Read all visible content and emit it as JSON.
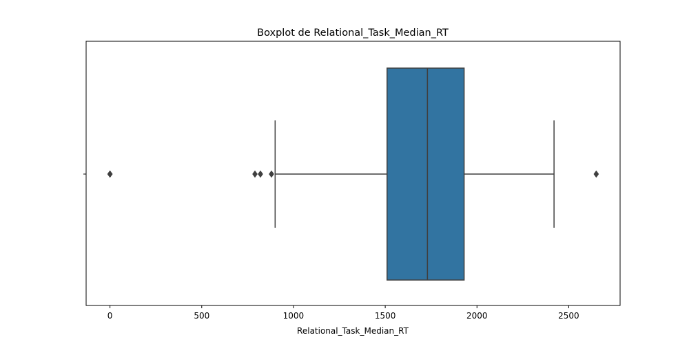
{
  "chart_data": {
    "type": "boxplot",
    "title": "Boxplot de Relational_Task_Median_RT",
    "xlabel": "Relational_Task_Median_RT",
    "ylabel": "",
    "xlim": [
      -130,
      2780
    ],
    "xticks": [
      0,
      500,
      1000,
      1500,
      2000,
      2500
    ],
    "grid": false,
    "box_color": "#3274a1",
    "line_color": "#3f3f3f",
    "box": {
      "whisker_low": 900,
      "q1": 1510,
      "median": 1730,
      "q3": 1930,
      "whisker_high": 2420
    },
    "outliers": [
      0,
      0,
      790,
      820,
      880,
      2650
    ]
  }
}
